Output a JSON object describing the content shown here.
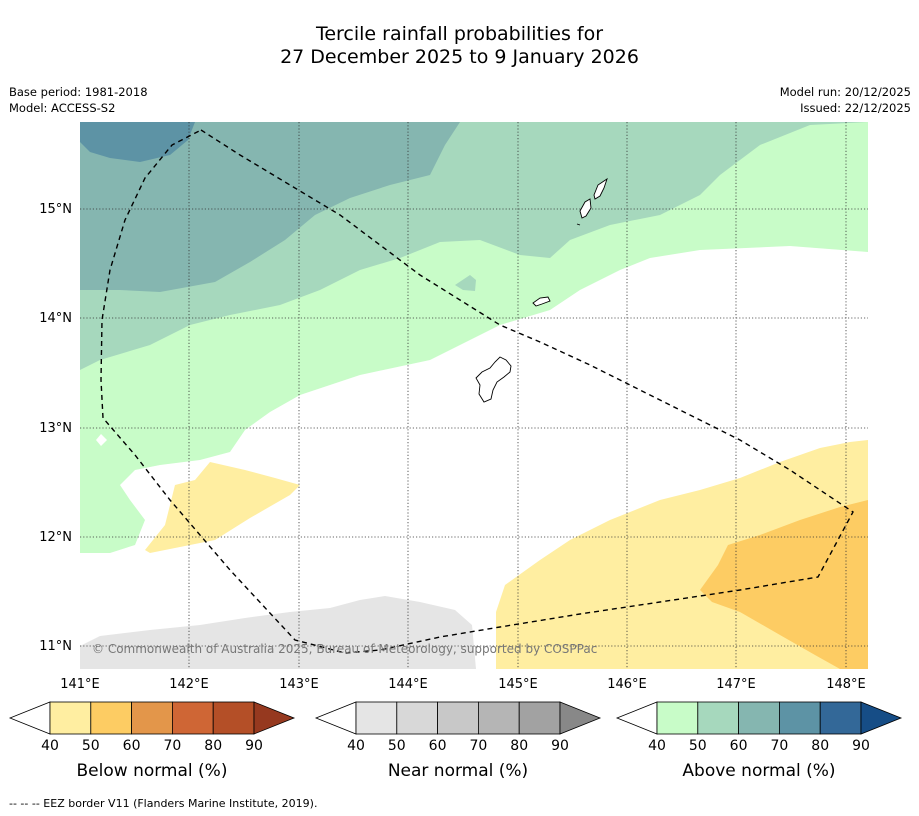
{
  "title": {
    "line1": "Tercile rainfall probabilities for",
    "line2": "27 December 2025 to 9 January 2026"
  },
  "meta_left": {
    "base_period": "Base period: 1981-2018",
    "model": "Model: ACCESS-S2"
  },
  "meta_right": {
    "model_run": "Model run: 20/12/2025",
    "issued": "Issued: 22/12/2025"
  },
  "map": {
    "lat_labels": [
      "15°N",
      "14°N",
      "13°N",
      "12°N",
      "11°N"
    ],
    "lon_labels": [
      "141°E",
      "142°E",
      "143°E",
      "144°E",
      "145°E",
      "146°E",
      "147°E",
      "148°E"
    ],
    "copyright": "© Commonwealth of Australia 2025, Bureau of Meteorology, supported by COSPPac"
  },
  "colorbars": [
    {
      "label": "Below normal (%)",
      "ticks": [
        "40",
        "50",
        "60",
        "70",
        "80",
        "90"
      ],
      "colors": [
        "#ffeea1",
        "#fdcc63",
        "#e3964a",
        "#cf6635",
        "#b44f27",
        "#96391f"
      ]
    },
    {
      "label": "Near normal (%)",
      "ticks": [
        "40",
        "50",
        "60",
        "70",
        "80",
        "90"
      ],
      "colors": [
        "#e5e5e5",
        "#d8d8d8",
        "#c8c8c8",
        "#b5b5b5",
        "#a2a2a2",
        "#888888"
      ]
    },
    {
      "label": "Above normal (%)",
      "ticks": [
        "40",
        "50",
        "60",
        "70",
        "80",
        "90"
      ],
      "colors": [
        "#c8fcc8",
        "#a6d8bd",
        "#85b6b0",
        "#5d93a5",
        "#336898",
        "#164d86"
      ]
    }
  ],
  "footer": "--  --  -- EEZ border V11 (Flanders Marine Institute, 2019)."
}
